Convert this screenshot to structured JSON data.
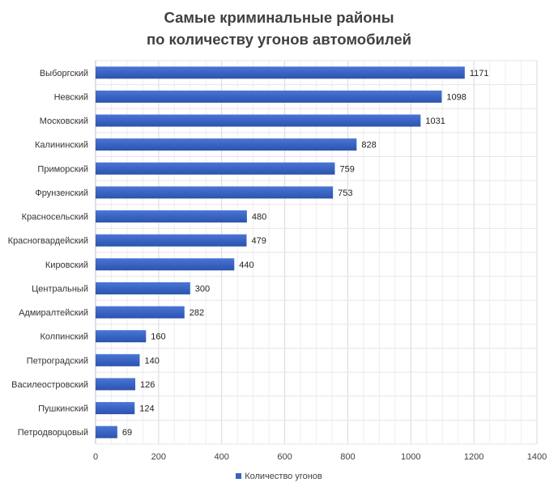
{
  "chart_data": {
    "type": "bar",
    "orientation": "horizontal",
    "title_line1": "Самые криминальные районы",
    "title_line2": "по количеству угонов автомобилей",
    "categories": [
      "Выборгский",
      "Невский",
      "Московский",
      "Калининский",
      "Приморский",
      "Фрунзенский",
      "Красносельский",
      "Красногвардейский",
      "Кировский",
      "Центральный",
      "Адмиралтейский",
      "Колпинский",
      "Петроградский",
      "Василеостровский",
      "Пушкинский",
      "Петродворцовый"
    ],
    "series": [
      {
        "name": "Количество угонов",
        "values": [
          1171,
          1098,
          1031,
          828,
          759,
          753,
          480,
          479,
          440,
          300,
          282,
          160,
          140,
          126,
          124,
          69
        ]
      }
    ],
    "xlim": [
      0,
      1400
    ],
    "xticks": [
      0,
      200,
      400,
      600,
      800,
      1000,
      1200,
      1400
    ],
    "grid": true,
    "legend_position": "bottom",
    "bar_color": "#3a64c4"
  }
}
